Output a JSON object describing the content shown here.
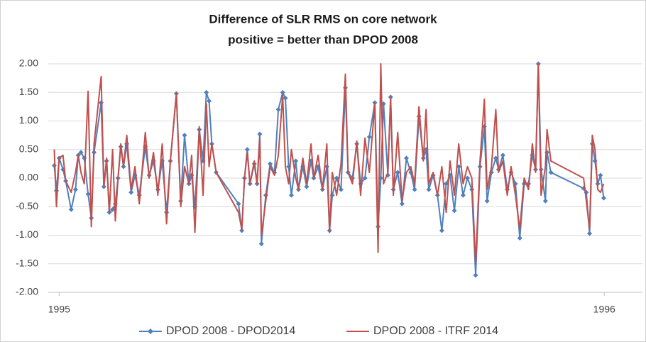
{
  "chart_data": {
    "type": "line",
    "title": "Difference of SLR RMS on core network",
    "subtitle": "positive = better than DPOD 2008",
    "x": [
      1994.991,
      1994.995,
      1995.0,
      1995.007,
      1995.012,
      1995.022,
      1995.03,
      1995.035,
      1995.04,
      1995.046,
      1995.053,
      1995.059,
      1995.064,
      1995.077,
      1995.082,
      1995.087,
      1995.092,
      1995.098,
      1995.103,
      1995.108,
      1995.113,
      1995.118,
      1995.124,
      1995.132,
      1995.139,
      1995.147,
      1995.158,
      1995.165,
      1995.173,
      1995.181,
      1995.189,
      1995.197,
      1995.204,
      1995.215,
      1995.223,
      1995.23,
      1995.238,
      1995.243,
      1995.249,
      1995.257,
      1995.264,
      1995.27,
      1995.275,
      1995.28,
      1995.288,
      1995.329,
      1995.335,
      1995.34,
      1995.345,
      1995.35,
      1995.358,
      1995.363,
      1995.368,
      1995.371,
      1995.379,
      1995.387,
      1995.395,
      1995.402,
      1995.41,
      1995.415,
      1995.421,
      1995.426,
      1995.434,
      1995.439,
      1995.447,
      1995.454,
      1995.462,
      1995.467,
      1995.475,
      1995.483,
      1995.491,
      1995.496,
      1995.501,
      1995.509,
      1995.517,
      1995.525,
      1995.53,
      1995.538,
      1995.546,
      1995.553,
      1995.561,
      1995.569,
      1995.579,
      1995.585,
      1995.59,
      1995.595,
      1995.603,
      1995.608,
      1995.613,
      1995.621,
      1995.629,
      1995.637,
      1995.645,
      1995.652,
      1995.66,
      1995.668,
      1995.673,
      1995.678,
      1995.686,
      1995.694,
      1995.702,
      1995.71,
      1995.717,
      1995.725,
      1995.733,
      1995.741,
      1995.749,
      1995.757,
      1995.764,
      1995.772,
      1995.78,
      1995.785,
      1995.793,
      1995.801,
      1995.806,
      1995.814,
      1995.822,
      1995.829,
      1995.837,
      1995.845,
      1995.853,
      1995.861,
      1995.868,
      1995.874,
      1995.879,
      1995.884,
      1995.892,
      1995.895,
      1995.902,
      1995.962,
      1995.967,
      1995.973,
      1995.978,
      1995.983,
      1995.988,
      1995.993,
      1995.999
    ],
    "series": [
      {
        "name": "DPOD 2008 - DPOD2014",
        "color": "#4f81bd",
        "marker": "diamond",
        "values": [
          0.22,
          -0.22,
          0.35,
          0.15,
          -0.05,
          -0.55,
          -0.2,
          0.4,
          0.45,
          0.35,
          -0.28,
          -0.7,
          0.45,
          1.32,
          -0.15,
          0.3,
          -0.6,
          -0.55,
          -0.45,
          0.0,
          0.55,
          0.2,
          0.6,
          -0.25,
          0.05,
          -0.3,
          0.55,
          0.05,
          0.3,
          -0.2,
          0.3,
          -0.6,
          0.3,
          1.48,
          -0.4,
          0.75,
          -0.1,
          0.05,
          -0.5,
          0.85,
          0.3,
          1.5,
          1.35,
          0.6,
          0.1,
          -0.45,
          -0.92,
          0.0,
          0.5,
          -0.1,
          0.25,
          -0.1,
          0.77,
          -1.15,
          -0.3,
          0.25,
          0.1,
          1.2,
          1.5,
          1.4,
          0.2,
          -0.3,
          0.3,
          -0.2,
          0.2,
          -0.15,
          0.3,
          0.0,
          0.2,
          -0.2,
          0.2,
          -0.92,
          -0.3,
          0.0,
          -0.2,
          1.58,
          0.1,
          0.0,
          0.6,
          -0.1,
          0.0,
          0.72,
          1.32,
          -0.85,
          0.0,
          1.3,
          0.05,
          1.42,
          -0.2,
          0.1,
          -0.45,
          0.35,
          0.1,
          -0.2,
          1.08,
          0.35,
          0.5,
          -0.2,
          0.05,
          -0.3,
          -0.92,
          -0.1,
          0.05,
          -0.57,
          0.2,
          -0.3,
          0.0,
          -0.2,
          -1.7,
          0.2,
          0.9,
          -0.4,
          0.1,
          0.35,
          0.15,
          0.4,
          -0.2,
          0.1,
          -0.1,
          -1.05,
          -0.1,
          -0.1,
          0.4,
          0.15,
          2.0,
          0.15,
          -0.4,
          0.45,
          0.1,
          -0.18,
          -0.25,
          -0.97,
          0.6,
          0.3,
          -0.1,
          0.05,
          -0.35
        ]
      },
      {
        "name": "DPOD 2008 - ITRF 2014",
        "color": "#c0504d",
        "marker": "none",
        "values": [
          0.5,
          -0.5,
          0.35,
          0.4,
          -0.05,
          -0.25,
          0.1,
          0.4,
          0.1,
          -0.1,
          1.52,
          -0.85,
          0.6,
          1.78,
          -0.15,
          0.35,
          -0.6,
          0.5,
          -0.75,
          0.0,
          0.6,
          0.2,
          0.75,
          -0.2,
          0.2,
          -0.45,
          0.8,
          0.0,
          0.45,
          -0.3,
          0.6,
          -0.8,
          0.3,
          1.48,
          -0.5,
          0.2,
          -0.1,
          0.4,
          -0.95,
          0.9,
          -0.3,
          1.3,
          0.2,
          0.6,
          0.1,
          -0.6,
          -0.9,
          0.0,
          0.45,
          -0.1,
          0.3,
          -0.1,
          0.7,
          -1.0,
          -0.4,
          0.2,
          0.05,
          0.4,
          1.45,
          0.2,
          -0.1,
          0.5,
          0.0,
          -0.2,
          0.35,
          -0.1,
          0.6,
          0.0,
          0.4,
          -0.2,
          0.6,
          -0.95,
          0.1,
          -0.3,
          0.25,
          1.82,
          0.1,
          -0.1,
          0.65,
          -0.3,
          0.7,
          0.1,
          1.3,
          -1.3,
          2.0,
          -0.1,
          0.1,
          1.4,
          -0.3,
          0.8,
          -0.4,
          0.1,
          0.2,
          -0.1,
          1.25,
          0.3,
          1.2,
          -0.1,
          0.1,
          -0.3,
          0.2,
          -0.6,
          0.3,
          -0.3,
          0.6,
          -0.1,
          0.2,
          0.0,
          -1.5,
          0.3,
          1.38,
          -0.2,
          0.2,
          1.2,
          0.1,
          0.3,
          -0.3,
          0.2,
          -0.3,
          -0.9,
          0.0,
          -0.2,
          0.6,
          0.1,
          2.0,
          -0.3,
          0.2,
          0.85,
          0.3,
          0.0,
          -0.4,
          -0.9,
          0.75,
          0.5,
          -0.2,
          -0.25,
          -0.1
        ]
      }
    ],
    "xlim": [
      1994.98,
      1996.07
    ],
    "xticks": [
      1995,
      1996
    ],
    "ylim": [
      -2,
      2
    ],
    "yticks": [
      {
        "value": -2,
        "label": "-2.00"
      },
      {
        "value": -1.5,
        "label": "-1.50"
      },
      {
        "value": -1,
        "label": "-1.00"
      },
      {
        "value": -0.5,
        "label": "-0.50"
      },
      {
        "value": 0,
        "label": "0.00"
      },
      {
        "value": 0.5,
        "label": "0.50"
      },
      {
        "value": 1,
        "label": "1.00"
      },
      {
        "value": 1.5,
        "label": "1.50"
      },
      {
        "value": 2,
        "label": "2.00"
      }
    ],
    "grid": true,
    "legend": "bottom"
  }
}
